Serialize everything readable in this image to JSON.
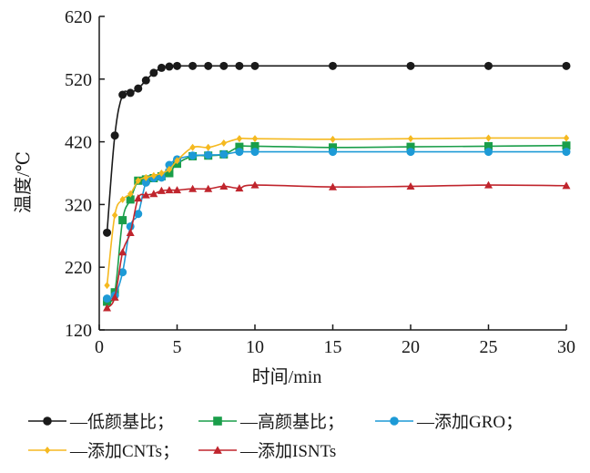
{
  "chart_data": {
    "type": "line",
    "title": "",
    "xlabel": "时间/min",
    "ylabel": "温度/℃",
    "xlim": [
      0,
      30
    ],
    "ylim": [
      120,
      620
    ],
    "x_ticks": [
      0,
      5,
      10,
      15,
      20,
      25,
      30
    ],
    "x_tick_labels": [
      "0",
      "5",
      "10",
      "15",
      "20",
      "25",
      "30"
    ],
    "y_ticks": [
      120,
      220,
      320,
      420,
      520,
      620
    ],
    "y_tick_labels": [
      "120",
      "220",
      "320",
      "420",
      "520",
      "620"
    ],
    "grid": false,
    "legend_position": "bottom",
    "series": [
      {
        "name": "—低颜基比；",
        "color": "#1a1a1a",
        "marker": "circle",
        "x": [
          0.5,
          1,
          1.5,
          2,
          2.5,
          3,
          3.5,
          4,
          4.5,
          5,
          6,
          7,
          8,
          9,
          10,
          15,
          20,
          25,
          30
        ],
        "y": [
          275,
          430,
          495,
          498,
          505,
          518,
          530,
          538,
          540,
          541,
          541,
          541,
          541,
          541,
          541,
          541,
          541,
          541,
          541
        ]
      },
      {
        "name": "—高颜基比；",
        "color": "#1a9e4a",
        "marker": "square",
        "x": [
          0.5,
          1,
          1.5,
          2,
          2.5,
          3,
          3.5,
          4,
          4.5,
          5,
          6,
          7,
          8,
          9,
          10,
          15,
          20,
          25,
          30
        ],
        "y": [
          165,
          180,
          295,
          328,
          358,
          360,
          362,
          365,
          370,
          385,
          397,
          398,
          400,
          412,
          413,
          411,
          412,
          413,
          414
        ]
      },
      {
        "name": "—添加GRO；",
        "color": "#1d9ad6",
        "marker": "circle",
        "x": [
          0.5,
          1,
          1.5,
          2,
          2.5,
          3,
          3.5,
          4,
          4.5,
          5,
          6,
          7,
          8,
          9,
          10,
          15,
          20,
          25,
          30
        ],
        "y": [
          170,
          175,
          212,
          285,
          305,
          355,
          362,
          363,
          383,
          392,
          398,
          399,
          400,
          404,
          404,
          404,
          404,
          404,
          404
        ]
      },
      {
        "name": "—添加CNTs；",
        "color": "#f5b920",
        "marker": "diamond",
        "x": [
          0.5,
          1,
          1.5,
          2,
          2.5,
          3,
          3.5,
          4,
          4.5,
          5,
          6,
          7,
          8,
          9,
          10,
          15,
          20,
          25,
          30
        ],
        "y": [
          191,
          303,
          328,
          337,
          358,
          363,
          366,
          370,
          376,
          390,
          411,
          411,
          418,
          425,
          425,
          424,
          425,
          426,
          426
        ]
      },
      {
        "name": "—添加ISNTs",
        "color": "#c0252d",
        "marker": "triangle",
        "x": [
          0.5,
          1,
          1.5,
          2,
          2.5,
          3,
          3.5,
          4,
          4.5,
          5,
          6,
          7,
          8,
          9,
          10,
          15,
          20,
          25,
          30
        ],
        "y": [
          155,
          172,
          244,
          275,
          330,
          335,
          337,
          342,
          343,
          343,
          345,
          345,
          349,
          346,
          351,
          348,
          349,
          351,
          350
        ]
      }
    ]
  }
}
